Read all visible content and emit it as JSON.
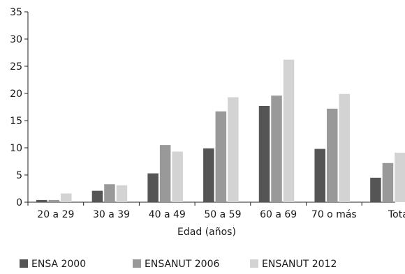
{
  "chart_data": {
    "type": "bar",
    "xlabel": "Edad (años)",
    "ylabel": "",
    "categories": [
      "20 a 29",
      "30 a 39",
      "40 a 49",
      "50 a 59",
      "60 a 69",
      "70 o más",
      "Total"
    ],
    "ylim": [
      0,
      35
    ],
    "yticks": [
      0,
      5,
      10,
      15,
      20,
      25,
      30,
      35
    ],
    "grid": false,
    "legend_position": "bottom",
    "series": [
      {
        "name": "ENSA 2000",
        "color": "#555555",
        "values": [
          0.4,
          2.1,
          5.3,
          9.9,
          17.7,
          9.8,
          4.5
        ]
      },
      {
        "name": "ENSANUT 2006",
        "color": "#999999",
        "values": [
          0.4,
          3.3,
          10.5,
          16.7,
          19.6,
          17.2,
          7.2
        ]
      },
      {
        "name": "ENSANUT 2012",
        "color": "#d3d3d3",
        "values": [
          1.6,
          3.1,
          9.3,
          19.3,
          26.2,
          19.9,
          9.1
        ]
      }
    ]
  }
}
